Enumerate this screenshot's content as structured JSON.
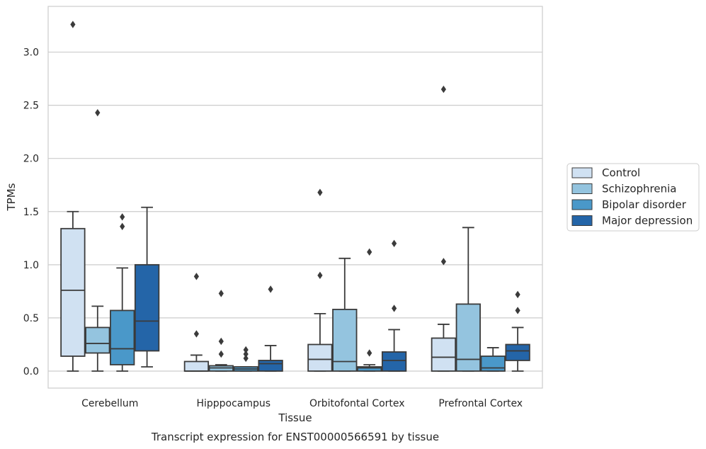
{
  "chart_data": {
    "type": "box",
    "title": "",
    "caption": "Transcript expression for ENST00000566591 by tissue",
    "xlabel": "Tissue",
    "ylabel": "TPMs",
    "ylim": [
      -0.16,
      3.43
    ],
    "yticks": [
      "0.0",
      "0.5",
      "1.0",
      "1.5",
      "2.0",
      "2.5",
      "3.0"
    ],
    "ytick_values": [
      0.0,
      0.5,
      1.0,
      1.5,
      2.0,
      2.5,
      3.0
    ],
    "grid": "horizontal",
    "legend_position": "right",
    "categories": [
      "Cerebellum",
      "Hipppocampus",
      "Orbitofontal Cortex",
      "Prefrontal Cortex"
    ],
    "series": [
      {
        "name": "Control",
        "color": "#d0e1f2",
        "boxes": [
          {
            "q1": 0.14,
            "median": 0.76,
            "q3": 1.34,
            "whisker_low": 0.0,
            "whisker_high": 1.5,
            "outliers": [
              3.26
            ]
          },
          {
            "q1": 0.0,
            "median": 0.0,
            "q3": 0.09,
            "whisker_low": 0.0,
            "whisker_high": 0.15,
            "outliers": [
              0.89,
              0.35
            ]
          },
          {
            "q1": 0.0,
            "median": 0.11,
            "q3": 0.25,
            "whisker_low": 0.0,
            "whisker_high": 0.54,
            "outliers": [
              1.68,
              0.9
            ]
          },
          {
            "q1": 0.0,
            "median": 0.13,
            "q3": 0.31,
            "whisker_low": 0.0,
            "whisker_high": 0.44,
            "outliers": [
              2.65,
              1.03
            ]
          }
        ]
      },
      {
        "name": "Schizophrenia",
        "color": "#94c4df",
        "boxes": [
          {
            "q1": 0.17,
            "median": 0.26,
            "q3": 0.41,
            "whisker_low": 0.0,
            "whisker_high": 0.61,
            "outliers": [
              2.43
            ]
          },
          {
            "q1": 0.0,
            "median": 0.03,
            "q3": 0.05,
            "whisker_low": 0.0,
            "whisker_high": 0.06,
            "outliers": [
              0.73,
              0.28,
              0.16
            ]
          },
          {
            "q1": 0.0,
            "median": 0.09,
            "q3": 0.58,
            "whisker_low": 0.0,
            "whisker_high": 1.06,
            "outliers": []
          },
          {
            "q1": 0.0,
            "median": 0.11,
            "q3": 0.63,
            "whisker_low": 0.0,
            "whisker_high": 1.35,
            "outliers": []
          }
        ]
      },
      {
        "name": "Bipolar disorder",
        "color": "#4a98c9",
        "boxes": [
          {
            "q1": 0.06,
            "median": 0.21,
            "q3": 0.57,
            "whisker_low": 0.0,
            "whisker_high": 0.97,
            "outliers": [
              1.45,
              1.36
            ]
          },
          {
            "q1": 0.0,
            "median": 0.02,
            "q3": 0.04,
            "whisker_low": 0.0,
            "whisker_high": 0.04,
            "outliers": [
              0.2,
              0.16,
              0.12
            ]
          },
          {
            "q1": 0.0,
            "median": 0.03,
            "q3": 0.04,
            "whisker_low": 0.0,
            "whisker_high": 0.06,
            "outliers": [
              1.12,
              0.17
            ]
          },
          {
            "q1": 0.0,
            "median": 0.03,
            "q3": 0.14,
            "whisker_low": 0.0,
            "whisker_high": 0.22,
            "outliers": []
          }
        ]
      },
      {
        "name": "Major depression",
        "color": "#2465a8",
        "boxes": [
          {
            "q1": 0.19,
            "median": 0.47,
            "q3": 1.0,
            "whisker_low": 0.04,
            "whisker_high": 1.54,
            "outliers": []
          },
          {
            "q1": 0.0,
            "median": 0.07,
            "q3": 0.1,
            "whisker_low": 0.0,
            "whisker_high": 0.24,
            "outliers": [
              0.77
            ]
          },
          {
            "q1": 0.0,
            "median": 0.1,
            "q3": 0.18,
            "whisker_low": 0.0,
            "whisker_high": 0.39,
            "outliers": [
              1.2,
              0.59
            ]
          },
          {
            "q1": 0.1,
            "median": 0.19,
            "q3": 0.25,
            "whisker_low": 0.0,
            "whisker_high": 0.41,
            "outliers": [
              0.72,
              0.57
            ]
          }
        ]
      }
    ]
  }
}
